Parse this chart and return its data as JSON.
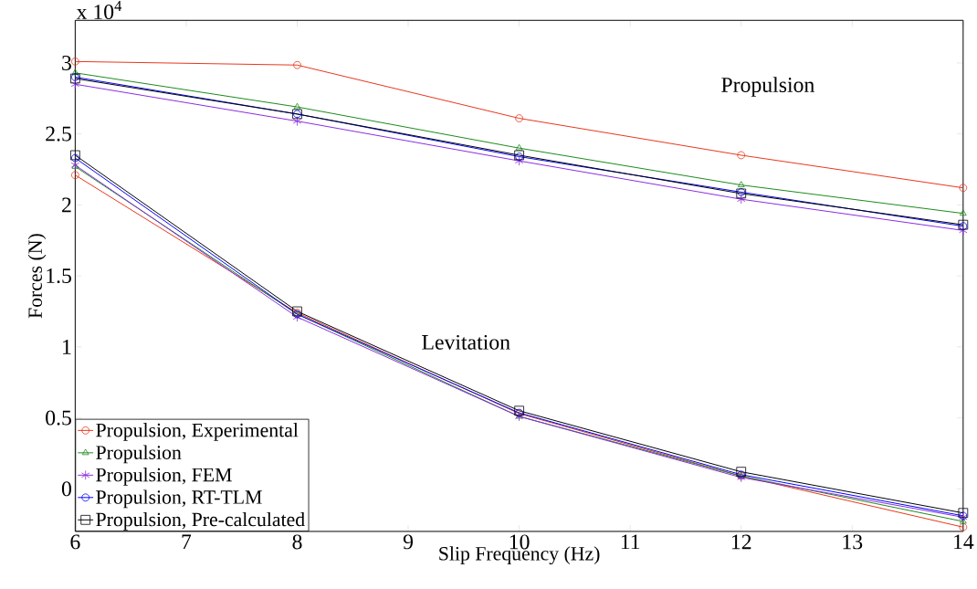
{
  "chart_data": {
    "type": "line",
    "xlabel": "Slip Frequency (Hz)",
    "ylabel": "Forces (N)",
    "x": [
      6,
      8,
      10,
      12,
      14
    ],
    "xlim": [
      6,
      14
    ],
    "xticks": [
      6,
      7,
      8,
      9,
      10,
      11,
      12,
      13,
      14
    ],
    "ylim": [
      -0.3,
      3.3
    ],
    "yticks": [
      0,
      0.5,
      1,
      1.5,
      2,
      2.5,
      3
    ],
    "legend": "bottom left",
    "line_style": "solid",
    "annotations": [
      "x 10$^{4}$",
      "Propulsion",
      "Levitation"
    ],
    "series": [
      {
        "name": "Propulsion, Experimental",
        "color": "#e8361b",
        "marker": "circle",
        "values": [
          3.01,
          2.985,
          2.61,
          2.35,
          2.12
        ]
      },
      {
        "name": "Propulsion",
        "color": "#1a8a1a",
        "marker": "triangle",
        "values": [
          2.93,
          2.69,
          2.4,
          2.14,
          1.94
        ]
      },
      {
        "name": "Propulsion, FEM",
        "color": "#8a2be2",
        "marker": "cross",
        "values": [
          2.85,
          2.59,
          2.31,
          2.04,
          1.82
        ]
      },
      {
        "name": "Propulsion, RT-TLM",
        "color": "#0000ff",
        "marker": "circle",
        "values": [
          2.9,
          2.64,
          2.34,
          2.09,
          1.85
        ]
      },
      {
        "name": "Propulsion, Pre-calculated",
        "color": "#000000",
        "marker": "square",
        "values": [
          2.89,
          2.64,
          2.35,
          2.08,
          1.86
        ]
      },
      {
        "color": "#e8361b",
        "marker": "circle",
        "values": [
          2.21,
          1.24,
          0.53,
          0.09,
          -0.27
        ]
      },
      {
        "color": "#1a8a1a",
        "marker": "triangle",
        "values": [
          2.27,
          1.23,
          0.51,
          0.09,
          -0.23
        ]
      },
      {
        "color": "#8a2be2",
        "marker": "cross",
        "values": [
          2.28,
          1.21,
          0.51,
          0.08,
          -0.2
        ]
      },
      {
        "color": "#0000ff",
        "marker": "circle",
        "values": [
          2.33,
          1.23,
          0.535,
          0.1,
          -0.19
        ]
      },
      {
        "color": "#000000",
        "marker": "square",
        "values": [
          2.35,
          1.25,
          0.55,
          0.12,
          -0.17
        ]
      }
    ]
  }
}
